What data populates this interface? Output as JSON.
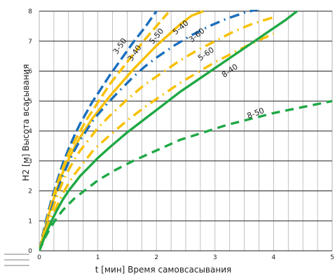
{
  "chart_data": {
    "type": "line",
    "title": "",
    "xlabel": "t [мин] Время самовсасывания",
    "ylabel": "H2 [м] Высота всасывания",
    "xlim": [
      0,
      5
    ],
    "ylim": [
      0,
      8
    ],
    "x_ticks": [
      "0",
      "1",
      "2",
      "3",
      "4",
      "5"
    ],
    "y_ticks": [
      "0",
      "1",
      "2",
      "3",
      "4",
      "5",
      "6",
      "7",
      "8"
    ],
    "grid": true,
    "grid_minor_x_step": 0.25,
    "series": [
      {
        "name": "3-50",
        "color": "#1a6fbd",
        "style": "long-dash",
        "x": [
          0,
          0.1,
          0.2,
          0.3,
          0.4,
          0.5,
          0.6,
          0.7,
          0.8,
          0.9,
          1.0,
          1.2,
          1.4,
          1.6,
          1.8,
          2.0
        ],
        "y": [
          0,
          0.9,
          1.65,
          2.3,
          2.9,
          3.4,
          3.85,
          4.25,
          4.6,
          4.95,
          5.25,
          5.85,
          6.4,
          6.95,
          7.45,
          8.0
        ]
      },
      {
        "name": "3-40",
        "color": "#f8c000",
        "style": "long-dash",
        "x": [
          0,
          0.1,
          0.2,
          0.3,
          0.4,
          0.5,
          0.6,
          0.7,
          0.8,
          0.9,
          1.0,
          1.2,
          1.4,
          1.6,
          1.8,
          2.0,
          2.2
        ],
        "y": [
          0,
          0.8,
          1.55,
          2.2,
          2.75,
          3.25,
          3.65,
          4.0,
          4.35,
          4.65,
          4.95,
          5.55,
          6.05,
          6.55,
          7.05,
          7.5,
          7.95
        ]
      },
      {
        "name": "5-50",
        "color": "#f8c000",
        "style": "solid",
        "x": [
          0,
          0.1,
          0.2,
          0.3,
          0.4,
          0.5,
          0.6,
          0.7,
          0.8,
          0.9,
          1.0,
          1.2,
          1.4,
          1.6,
          1.8,
          2.0,
          2.2,
          2.4,
          2.6,
          2.8
        ],
        "y": [
          0,
          0.75,
          1.45,
          2.05,
          2.6,
          3.05,
          3.45,
          3.8,
          4.1,
          4.4,
          4.65,
          5.15,
          5.6,
          6.05,
          6.45,
          6.85,
          7.2,
          7.55,
          7.85,
          8.0
        ]
      },
      {
        "name": "5-40",
        "color": "#1a6fbd",
        "style": "dash-dot",
        "x": [
          0,
          0.1,
          0.2,
          0.3,
          0.4,
          0.5,
          0.6,
          0.7,
          0.8,
          0.9,
          1.0,
          1.2,
          1.4,
          1.6,
          1.8,
          2.0,
          2.3,
          2.6,
          2.9,
          3.2,
          3.5,
          3.8
        ],
        "y": [
          0,
          0.7,
          1.35,
          1.95,
          2.5,
          2.95,
          3.35,
          3.7,
          4.0,
          4.3,
          4.55,
          5.0,
          5.4,
          5.8,
          6.15,
          6.45,
          6.85,
          7.2,
          7.5,
          7.75,
          7.95,
          8.1
        ]
      },
      {
        "name": "3-60",
        "color": "#f8c000",
        "style": "dash-dot",
        "x": [
          0,
          0.1,
          0.2,
          0.3,
          0.4,
          0.5,
          0.6,
          0.7,
          0.8,
          0.9,
          1.0,
          1.2,
          1.5,
          1.8,
          2.1,
          2.4,
          2.7,
          3.0,
          3.3,
          3.6,
          4.0
        ],
        "y": [
          0,
          0.65,
          1.25,
          1.8,
          2.3,
          2.7,
          3.05,
          3.35,
          3.6,
          3.85,
          4.1,
          4.5,
          5.05,
          5.55,
          5.95,
          6.35,
          6.7,
          7.0,
          7.3,
          7.55,
          7.8
        ]
      },
      {
        "name": "5-60",
        "color": "#f8c000",
        "style": "dash-dot",
        "x": [
          0,
          0.1,
          0.2,
          0.3,
          0.4,
          0.5,
          0.6,
          0.7,
          0.8,
          0.9,
          1.0,
          1.2,
          1.5,
          1.8,
          2.1,
          2.4,
          2.7,
          3.0,
          3.3,
          3.6,
          4.0
        ],
        "y": [
          0,
          0.55,
          1.05,
          1.5,
          1.9,
          2.25,
          2.55,
          2.8,
          3.05,
          3.3,
          3.5,
          3.85,
          4.35,
          4.8,
          5.2,
          5.6,
          5.95,
          6.3,
          6.6,
          6.9,
          7.25
        ]
      },
      {
        "name": "8-40",
        "color": "#1fa845",
        "style": "solid",
        "x": [
          0,
          0.1,
          0.2,
          0.3,
          0.4,
          0.5,
          0.6,
          0.7,
          0.8,
          1.0,
          1.2,
          1.5,
          1.8,
          2.1,
          2.4,
          2.7,
          3.0,
          3.3,
          3.6,
          3.9,
          4.2,
          4.4
        ],
        "y": [
          0,
          0.5,
          0.95,
          1.35,
          1.7,
          2.0,
          2.25,
          2.5,
          2.7,
          3.1,
          3.45,
          3.95,
          4.4,
          4.85,
          5.3,
          5.7,
          6.1,
          6.5,
          6.9,
          7.3,
          7.7,
          8.0
        ]
      },
      {
        "name": "8-50",
        "color": "#1fa845",
        "style": "dashed",
        "x": [
          0,
          0.1,
          0.2,
          0.3,
          0.4,
          0.5,
          0.6,
          0.8,
          1.0,
          1.3,
          1.6,
          2.0,
          2.4,
          2.8,
          3.2,
          3.6,
          4.0,
          4.5,
          5.0
        ],
        "y": [
          0,
          0.45,
          0.8,
          1.1,
          1.35,
          1.55,
          1.75,
          2.05,
          2.35,
          2.7,
          3.0,
          3.35,
          3.7,
          3.95,
          4.2,
          4.4,
          4.6,
          4.8,
          5.0
        ]
      }
    ]
  }
}
